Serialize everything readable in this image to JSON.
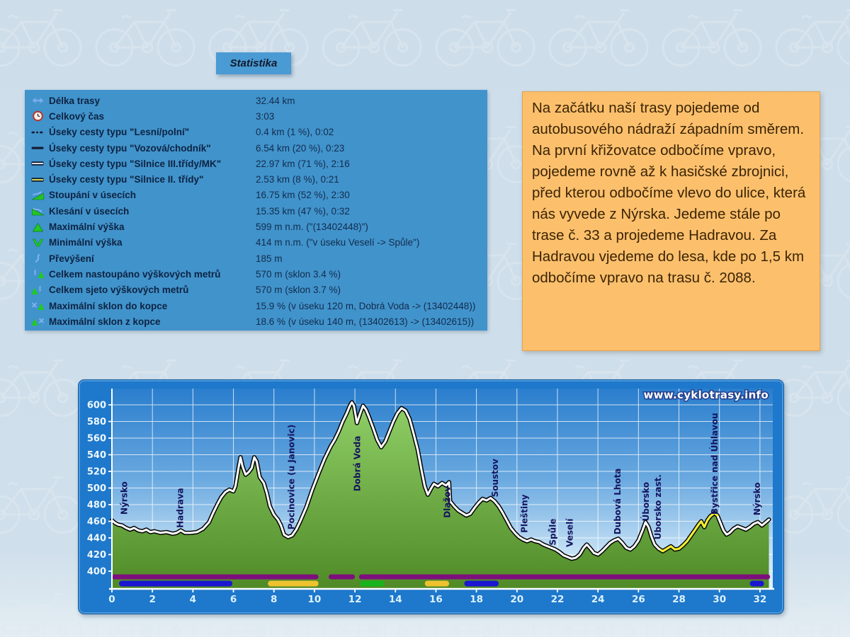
{
  "title_badge": {
    "label": "Statistika"
  },
  "stats_panel": {
    "rows": [
      {
        "icon": "route-length-icon",
        "label": "Délka trasy",
        "value": "32.44 km"
      },
      {
        "icon": "total-time-icon",
        "label": "Celkový čas",
        "value": "3:03"
      },
      {
        "icon": "road-forest-icon",
        "label": "Úseky cesty typu \"Lesní/polní\"",
        "value": "0.4 km (1 %), 0:02"
      },
      {
        "icon": "road-carriage-icon",
        "label": "Úseky cesty typu \"Vozová/chodník\"",
        "value": "6.54 km (20 %), 0:23"
      },
      {
        "icon": "road-class3-icon",
        "label": "Úseky cesty typu \"Silnice III.třídy/MK\"",
        "value": "22.97 km (71 %), 2:16"
      },
      {
        "icon": "road-class2-icon",
        "label": "Úseky cesty typu \"Silnice II. třídy\"",
        "value": "2.53 km (8 %), 0:21"
      },
      {
        "icon": "climb-sections-icon",
        "label": "Stoupání v úsecích",
        "value": "16.75 km (52 %), 2:30"
      },
      {
        "icon": "descent-sections-icon",
        "label": "Klesání v úsecích",
        "value": "15.35 km (47 %), 0:32"
      },
      {
        "icon": "max-elevation-icon",
        "label": "Maximální výška",
        "value": "599 m n.m. (\"(13402448)\")"
      },
      {
        "icon": "min-elevation-icon",
        "label": "Minimální výška",
        "value": "414 m n.m. (\"v úseku Veselí -> Spůle\")"
      },
      {
        "icon": "elevation-gain-icon",
        "label": "Převýšení",
        "value": "185 m"
      },
      {
        "icon": "total-ascent-icon",
        "label": "Celkem nastoupáno výškových metrů",
        "value": "570 m (sklon 3.4 %)"
      },
      {
        "icon": "total-descent-icon",
        "label": "Celkem sjeto výškových metrů",
        "value": "570 m (sklon 3.7 %)"
      },
      {
        "icon": "max-uphill-grade-icon",
        "label": "Maximální sklon do kopce",
        "value": "15.9 % (v úseku 120 m, Dobrá Voda -> (13402448))"
      },
      {
        "icon": "max-downhill-grade-icon",
        "label": "Maximální sklon z kopce",
        "value": "18.6 % (v úseku 140 m, (13402613) -> (13402615))"
      }
    ]
  },
  "description_box": {
    "text": "Na začátku naší trasy pojedeme od autobusového nádraží západním směrem. Na první křižovatce odbočíme vpravo,  pojedeme rovně až k hasičské zbrojnici, před kterou odbočíme vlevo do ulice, která nás vyvede z Nýrska. Jedeme stále po trase č. 33 a projedeme Hadravou. Za Hadravou vjedeme do lesa, kde po 1,5 km odbočíme vpravo na trasu č. 2088."
  },
  "chart_data": {
    "type": "area",
    "title": "",
    "watermark": "www.cyklotrasy.info",
    "x_unit": "km",
    "y_unit": "m",
    "xlim": [
      0,
      32.7
    ],
    "ylim": [
      400,
      600
    ],
    "grid": true,
    "x_ticks": [
      0,
      2,
      4,
      6,
      8,
      10,
      12,
      14,
      16,
      18,
      20,
      22,
      24,
      26,
      28,
      30,
      32
    ],
    "y_ticks": [
      400,
      420,
      440,
      460,
      480,
      500,
      520,
      540,
      560,
      580,
      600
    ],
    "profile": [
      [
        0,
        461
      ],
      [
        0.15,
        458
      ],
      [
        0.3,
        456
      ],
      [
        0.5,
        455
      ],
      [
        0.7,
        452
      ],
      [
        0.9,
        450
      ],
      [
        1.1,
        452
      ],
      [
        1.3,
        449
      ],
      [
        1.5,
        448
      ],
      [
        1.7,
        450
      ],
      [
        1.9,
        447
      ],
      [
        2.1,
        448
      ],
      [
        2.4,
        446
      ],
      [
        2.7,
        447
      ],
      [
        3,
        445
      ],
      [
        3.2,
        446
      ],
      [
        3.4,
        449
      ],
      [
        3.6,
        446
      ],
      [
        3.9,
        446
      ],
      [
        4.2,
        447
      ],
      [
        4.5,
        451
      ],
      [
        4.8,
        459
      ],
      [
        5,
        470
      ],
      [
        5.2,
        480
      ],
      [
        5.4,
        489
      ],
      [
        5.6,
        495
      ],
      [
        5.8,
        498
      ],
      [
        6,
        496
      ],
      [
        6.1,
        502
      ],
      [
        6.25,
        524
      ],
      [
        6.35,
        537
      ],
      [
        6.45,
        526
      ],
      [
        6.6,
        516
      ],
      [
        6.75,
        519
      ],
      [
        6.9,
        524
      ],
      [
        7.03,
        537
      ],
      [
        7.15,
        532
      ],
      [
        7.3,
        513
      ],
      [
        7.5,
        506
      ],
      [
        7.65,
        494
      ],
      [
        7.8,
        478
      ],
      [
        8,
        468
      ],
      [
        8.2,
        462
      ],
      [
        8.35,
        455
      ],
      [
        8.5,
        444
      ],
      [
        8.7,
        441
      ],
      [
        8.9,
        443
      ],
      [
        9.1,
        450
      ],
      [
        9.3,
        460
      ],
      [
        9.6,
        477
      ],
      [
        9.9,
        498
      ],
      [
        10.2,
        517
      ],
      [
        10.5,
        535
      ],
      [
        10.8,
        550
      ],
      [
        11,
        558
      ],
      [
        11.2,
        568
      ],
      [
        11.4,
        580
      ],
      [
        11.6,
        590
      ],
      [
        11.75,
        599
      ],
      [
        11.85,
        603
      ],
      [
        11.95,
        599
      ],
      [
        12.1,
        578
      ],
      [
        12.25,
        589
      ],
      [
        12.4,
        599
      ],
      [
        12.55,
        594
      ],
      [
        12.7,
        585
      ],
      [
        12.9,
        572
      ],
      [
        13.1,
        558
      ],
      [
        13.3,
        549
      ],
      [
        13.5,
        556
      ],
      [
        13.7,
        568
      ],
      [
        13.9,
        580
      ],
      [
        14.1,
        590
      ],
      [
        14.3,
        596
      ],
      [
        14.5,
        593
      ],
      [
        14.7,
        583
      ],
      [
        14.9,
        565
      ],
      [
        15.1,
        546
      ],
      [
        15.3,
        520
      ],
      [
        15.45,
        502
      ],
      [
        15.6,
        492
      ],
      [
        15.75,
        499
      ],
      [
        15.9,
        505
      ],
      [
        16.1,
        502
      ],
      [
        16.3,
        506
      ],
      [
        16.5,
        503
      ],
      [
        16.65,
        507
      ],
      [
        16.7,
        484
      ],
      [
        16.9,
        478
      ],
      [
        17.1,
        473
      ],
      [
        17.3,
        470
      ],
      [
        17.5,
        467
      ],
      [
        17.7,
        469
      ],
      [
        17.9,
        476
      ],
      [
        18.1,
        482
      ],
      [
        18.3,
        487
      ],
      [
        18.5,
        485
      ],
      [
        18.7,
        488
      ],
      [
        18.9,
        484
      ],
      [
        19.1,
        478
      ],
      [
        19.3,
        470
      ],
      [
        19.5,
        461
      ],
      [
        19.7,
        452
      ],
      [
        19.9,
        446
      ],
      [
        20.1,
        441
      ],
      [
        20.3,
        438
      ],
      [
        20.5,
        436
      ],
      [
        20.7,
        438
      ],
      [
        20.9,
        436
      ],
      [
        21.1,
        435
      ],
      [
        21.3,
        432
      ],
      [
        21.6,
        429
      ],
      [
        21.9,
        426
      ],
      [
        22.1,
        423
      ],
      [
        22.3,
        419
      ],
      [
        22.5,
        417
      ],
      [
        22.7,
        415
      ],
      [
        22.9,
        416
      ],
      [
        23.1,
        420
      ],
      [
        23.3,
        428
      ],
      [
        23.45,
        432
      ],
      [
        23.6,
        428
      ],
      [
        23.8,
        422
      ],
      [
        24,
        420
      ],
      [
        24.2,
        424
      ],
      [
        24.4,
        429
      ],
      [
        24.6,
        434
      ],
      [
        24.8,
        437
      ],
      [
        25,
        439
      ],
      [
        25.2,
        434
      ],
      [
        25.4,
        428
      ],
      [
        25.6,
        426
      ],
      [
        25.8,
        430
      ],
      [
        26,
        437
      ],
      [
        26.2,
        449
      ],
      [
        26.35,
        459
      ],
      [
        26.5,
        453
      ],
      [
        26.65,
        441
      ],
      [
        26.8,
        432
      ],
      [
        27,
        427
      ],
      [
        27.2,
        424
      ],
      [
        27.4,
        427
      ],
      [
        27.6,
        430
      ],
      [
        27.8,
        426
      ],
      [
        28,
        427
      ],
      [
        28.2,
        431
      ],
      [
        28.4,
        436
      ],
      [
        28.6,
        443
      ],
      [
        28.8,
        450
      ],
      [
        29,
        457
      ],
      [
        29.1,
        460
      ],
      [
        29.25,
        453
      ],
      [
        29.4,
        461
      ],
      [
        29.55,
        466
      ],
      [
        29.75,
        470
      ],
      [
        29.9,
        467
      ],
      [
        30.05,
        458
      ],
      [
        30.2,
        449
      ],
      [
        30.35,
        444
      ],
      [
        30.5,
        446
      ],
      [
        30.7,
        451
      ],
      [
        30.9,
        454
      ],
      [
        31.1,
        452
      ],
      [
        31.3,
        450
      ],
      [
        31.5,
        453
      ],
      [
        31.7,
        457
      ],
      [
        31.9,
        459
      ],
      [
        32.1,
        455
      ],
      [
        32.25,
        458
      ],
      [
        32.44,
        462
      ]
    ],
    "surface_II_section_km": [
      27.1,
      29.9
    ],
    "place_labels": [
      {
        "name": "Nýrsko",
        "km": 0.6,
        "label_base_m": 468
      },
      {
        "name": "Hadrava",
        "km": 3.35,
        "label_base_m": 452
      },
      {
        "name": "Pocinovice (u Janovic)",
        "km": 8.85,
        "label_base_m": 450
      },
      {
        "name": "Dobrá Voda",
        "km": 12.1,
        "label_base_m": 496
      },
      {
        "name": "Dlažov",
        "km": 16.55,
        "label_base_m": 464
      },
      {
        "name": "Soustov",
        "km": 18.9,
        "label_base_m": 489
      },
      {
        "name": "Pleštiny",
        "km": 20.35,
        "label_base_m": 446
      },
      {
        "name": "Spůle",
        "km": 21.75,
        "label_base_m": 431
      },
      {
        "name": "Veselí",
        "km": 22.6,
        "label_base_m": 429
      },
      {
        "name": "Dubová Lhota",
        "km": 24.95,
        "label_base_m": 444
      },
      {
        "name": "Úborsko",
        "km": 26.35,
        "label_base_m": 460
      },
      {
        "name": "Úborsko zast.",
        "km": 26.95,
        "label_base_m": 438
      },
      {
        "name": "Bystřice nad Úhlavou",
        "km": 29.75,
        "label_base_m": 468
      },
      {
        "name": "Nýrsko",
        "km": 31.85,
        "label_base_m": 467
      }
    ],
    "marker_bars": {
      "row1": {
        "color": "#7d0f7d",
        "segments": [
          [
            0,
            10.2
          ],
          [
            10.7,
            12.0
          ],
          [
            12.2,
            32.5
          ]
        ]
      },
      "row2": {
        "segments": [
          {
            "color": "#1a16d2",
            "range": [
              0.35,
              5.95
            ]
          },
          {
            "color": "#eec22f",
            "range": [
              7.7,
              10.2
            ]
          },
          {
            "color": "#17b31c",
            "range": [
              12.25,
              13.45
            ]
          },
          {
            "color": "#eec22f",
            "range": [
              15.45,
              16.65
            ]
          },
          {
            "color": "#1a16d2",
            "range": [
              17.4,
              19.1
            ]
          },
          {
            "color": "#1a16d2",
            "range": [
              31.5,
              32.2
            ]
          }
        ]
      }
    },
    "colors": {
      "panel_blue": "#4193cb",
      "chart_frame_blue": "#1e78cb",
      "sky_top": "#2a7ecd",
      "sky_bottom": "#e2f1fb",
      "fill_top": "#90cf68",
      "fill_bottom": "#4f8a26",
      "line": "#ffffff",
      "line_outline": "#000000",
      "line_section_II": "#f3ee2e",
      "grid": "#ffffff",
      "axis_text": "#ddf2ff",
      "place_text": "#14145e",
      "description_bg": "#fcc06d",
      "accent_orange": "#e2a14f"
    }
  }
}
